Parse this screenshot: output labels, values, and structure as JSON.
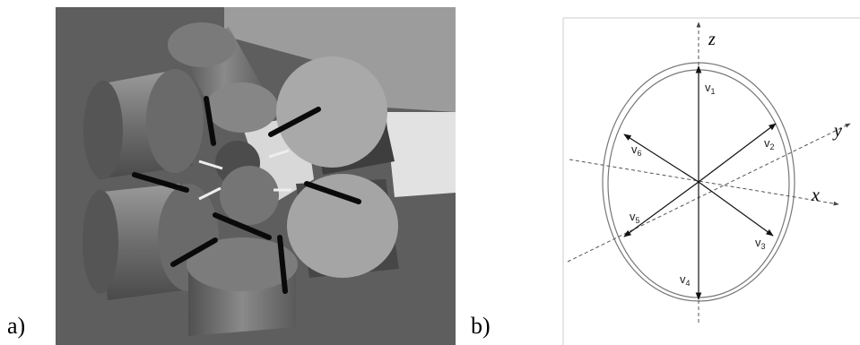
{
  "panels": [
    {
      "label": "a)"
    },
    {
      "label": "b)"
    }
  ],
  "diagram": {
    "axes": {
      "x": "x",
      "y": "y",
      "z": "z"
    },
    "vectors": [
      {
        "letter": "v",
        "sub": "1"
      },
      {
        "letter": "v",
        "sub": "2"
      },
      {
        "letter": "v",
        "sub": "3"
      },
      {
        "letter": "v",
        "sub": "4"
      },
      {
        "letter": "v",
        "sub": "5"
      },
      {
        "letter": "v",
        "sub": "6"
      }
    ]
  }
}
